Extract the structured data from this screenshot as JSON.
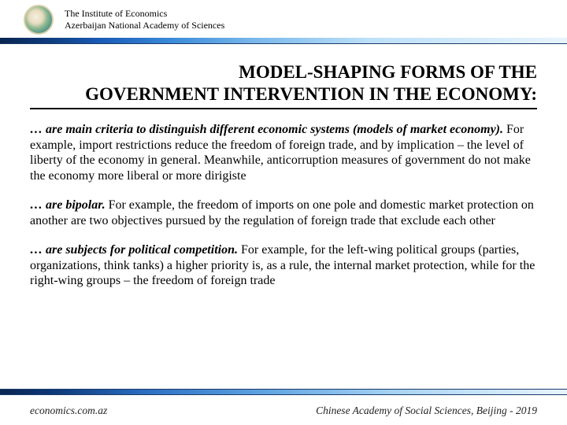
{
  "header": {
    "line1": "The Institute of Economics",
    "line2": "Azerbaijan National Academy of Sciences"
  },
  "title": {
    "line1": "MODEL-SHAPING FORMS OF THE",
    "line2": "GOVERNMENT INTERVENTION IN THE ECONOMY:"
  },
  "paragraphs": {
    "p1": {
      "lead": "… are main criteria to distinguish different economic systems (models of market economy).",
      "rest": " For example, import restrictions reduce the freedom of foreign trade, and by implication – the level of liberty of the economy in general. Meanwhile, anticorruption measures of government do not make the economy more liberal or more dirigiste"
    },
    "p2": {
      "lead": "… are bipolar.",
      "rest": " For example, the freedom of imports on one pole and domestic market protection on another are two objectives pursued by the regulation of foreign trade that exclude each other"
    },
    "p3": {
      "lead": "… are subjects for political competition.",
      "rest": " For example, for the left-wing political groups (parties, organizations, think tanks) a higher priority is, as a rule, the internal market protection, while for the right-wing groups – the freedom of foreign trade"
    }
  },
  "footer": {
    "left": "economics.com.az",
    "right": "Chinese Academy of Social Sciences, Beijing - 2019"
  },
  "colors": {
    "band_dark": "#0a2550",
    "band_light": "#e8f4fc",
    "text": "#000000",
    "background": "#ffffff"
  }
}
